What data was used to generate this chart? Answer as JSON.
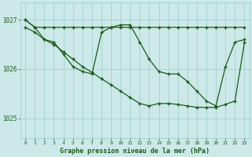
{
  "line1_x": [
    0,
    1,
    2,
    3,
    4,
    5,
    6,
    7,
    8,
    9,
    10,
    11,
    12,
    13,
    14,
    15,
    16,
    17,
    18,
    19,
    20,
    21,
    22,
    23
  ],
  "line1_y": [
    1027.0,
    1026.85,
    1026.85,
    1026.85,
    1026.85,
    1026.85,
    1026.85,
    1026.85,
    1026.85,
    1026.85,
    1026.85,
    1026.85,
    1026.85,
    1026.85,
    1026.85,
    1026.85,
    1026.85,
    1026.85,
    1026.85,
    1026.85,
    1026.85,
    1026.85,
    1026.85,
    1026.85
  ],
  "line2_x": [
    0,
    1,
    2,
    3,
    4,
    5,
    6,
    7,
    8,
    9,
    10,
    11,
    12,
    13,
    14,
    15,
    16,
    17,
    18,
    19,
    20,
    21,
    22,
    23
  ],
  "line2_y": [
    1027.0,
    1026.85,
    1026.6,
    1026.55,
    1026.3,
    1026.05,
    1025.95,
    1025.9,
    1026.75,
    1026.85,
    1026.9,
    1026.9,
    1026.55,
    1026.2,
    1025.95,
    1025.9,
    1025.9,
    1025.75,
    1025.55,
    1025.35,
    1025.25,
    1026.05,
    1026.55,
    1026.6
  ],
  "line3_x": [
    0,
    1,
    2,
    3,
    4,
    5,
    6,
    7,
    8,
    9,
    10,
    11,
    12,
    13,
    14,
    15,
    16,
    17,
    18,
    19,
    20,
    21,
    22,
    23
  ],
  "line3_y": [
    1026.85,
    1026.75,
    1026.6,
    1026.5,
    1026.35,
    1026.2,
    1026.05,
    1025.93,
    1025.8,
    1025.68,
    1025.55,
    1025.42,
    1025.3,
    1025.25,
    1025.3,
    1025.3,
    1025.28,
    1025.25,
    1025.22,
    1025.22,
    1025.22,
    1025.28,
    1025.35,
    1026.55
  ],
  "background_color": "#cce8e8",
  "grid_color": "#99cccc",
  "line_color": "#1a5c1a",
  "xlabel": "Graphe pression niveau de la mer (hPa)",
  "xlabel_color": "#1a5c1a",
  "tick_color": "#1a5c1a",
  "yticks": [
    1025,
    1026,
    1027
  ],
  "ylim": [
    1024.6,
    1027.35
  ],
  "xlim": [
    -0.5,
    23.5
  ],
  "xticks": [
    0,
    1,
    2,
    3,
    4,
    5,
    6,
    7,
    8,
    9,
    10,
    11,
    12,
    13,
    14,
    15,
    16,
    17,
    18,
    19,
    20,
    21,
    22,
    23
  ]
}
